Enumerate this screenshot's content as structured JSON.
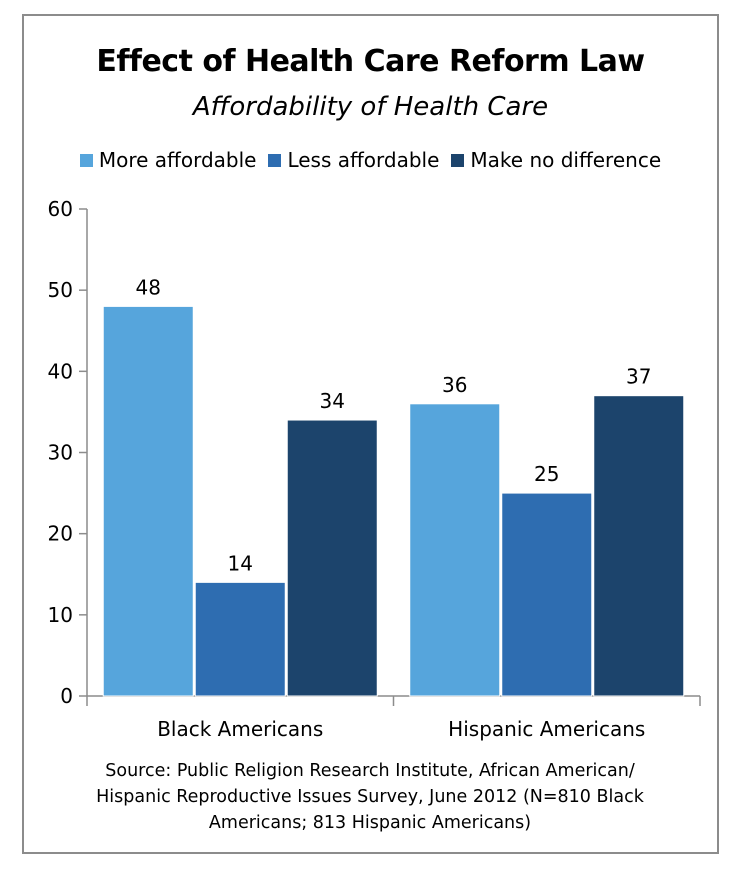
{
  "chart_data": {
    "type": "bar",
    "title": "Effect of Health Care Reform Law",
    "subtitle": "Affordability of Health Care",
    "categories": [
      "Black Americans",
      "Hispanic Americans"
    ],
    "series": [
      {
        "name": "More affordable",
        "color": "#56a5dc",
        "values": [
          48,
          36
        ]
      },
      {
        "name": "Less affordable",
        "color": "#2e6db1",
        "values": [
          14,
          25
        ]
      },
      {
        "name": "Make no difference",
        "color": "#1c446c",
        "values": [
          34,
          37
        ]
      }
    ],
    "ylim": [
      0,
      60
    ],
    "yticks": [
      "0",
      "10",
      "20",
      "30",
      "40",
      "50",
      "60"
    ],
    "xlabel": "",
    "ylabel": "",
    "grid": false,
    "legend_position": "top"
  },
  "source": {
    "lines": [
      "Source: Public Religion Research Institute, African American/",
      "Hispanic Reproductive Issues Survey, June 2012 (N=810 Black",
      "Americans; 813 Hispanic Americans)"
    ]
  }
}
